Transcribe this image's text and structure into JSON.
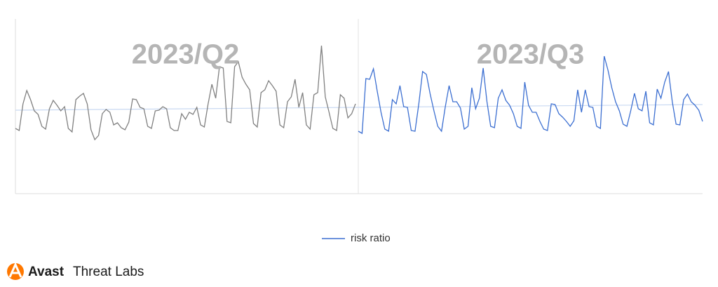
{
  "chart_data": {
    "type": "line",
    "series": [
      {
        "name": "2023/Q2",
        "color": "#808080",
        "values": [
          93,
          90,
          128,
          147,
          134,
          118,
          113,
          96,
          92,
          121,
          133,
          126,
          118,
          124,
          93,
          88,
          134,
          139,
          143,
          128,
          91,
          77,
          83,
          114,
          120,
          116,
          98,
          101,
          94,
          91,
          102,
          135,
          134,
          123,
          121,
          96,
          93,
          118,
          119,
          124,
          121,
          94,
          90,
          90,
          114,
          106,
          116,
          113,
          123,
          98,
          95,
          128,
          156,
          136,
          181,
          179,
          103,
          101,
          181,
          188,
          166,
          156,
          148,
          100,
          95,
          144,
          148,
          161,
          154,
          146,
          98,
          94,
          131,
          138,
          163,
          123,
          144,
          98,
          92,
          141,
          144,
          211,
          138,
          116,
          93,
          90,
          141,
          136,
          108,
          114,
          128
        ]
      },
      {
        "name": "2023/Q3",
        "color": "#3c6fd1",
        "values": [
          89,
          86,
          164,
          163,
          178,
          146,
          116,
          92,
          89,
          134,
          128,
          154,
          124,
          123,
          90,
          89,
          128,
          174,
          170,
          142,
          118,
          96,
          89,
          124,
          154,
          131,
          131,
          122,
          92,
          96,
          151,
          121,
          136,
          179,
          131,
          96,
          94,
          136,
          148,
          133,
          126,
          114,
          96,
          93,
          159,
          126,
          116,
          116,
          103,
          92,
          90,
          128,
          127,
          114,
          109,
          103,
          96,
          104,
          148,
          116,
          148,
          124,
          123,
          96,
          93,
          196,
          176,
          151,
          131,
          118,
          99,
          96,
          118,
          143,
          121,
          118,
          146,
          101,
          98,
          149,
          136,
          159,
          174,
          131,
          99,
          98,
          134,
          142,
          131,
          126,
          119,
          103
        ]
      }
    ],
    "trendline": {
      "values": [
        119,
        127
      ],
      "color": "#c9d9f2"
    },
    "legend": {
      "label": "risk ratio",
      "color": "#3c6fd1"
    },
    "ylim": [
      0,
      250
    ]
  },
  "brand": {
    "name": "Avast",
    "product": "Threat Labs"
  }
}
